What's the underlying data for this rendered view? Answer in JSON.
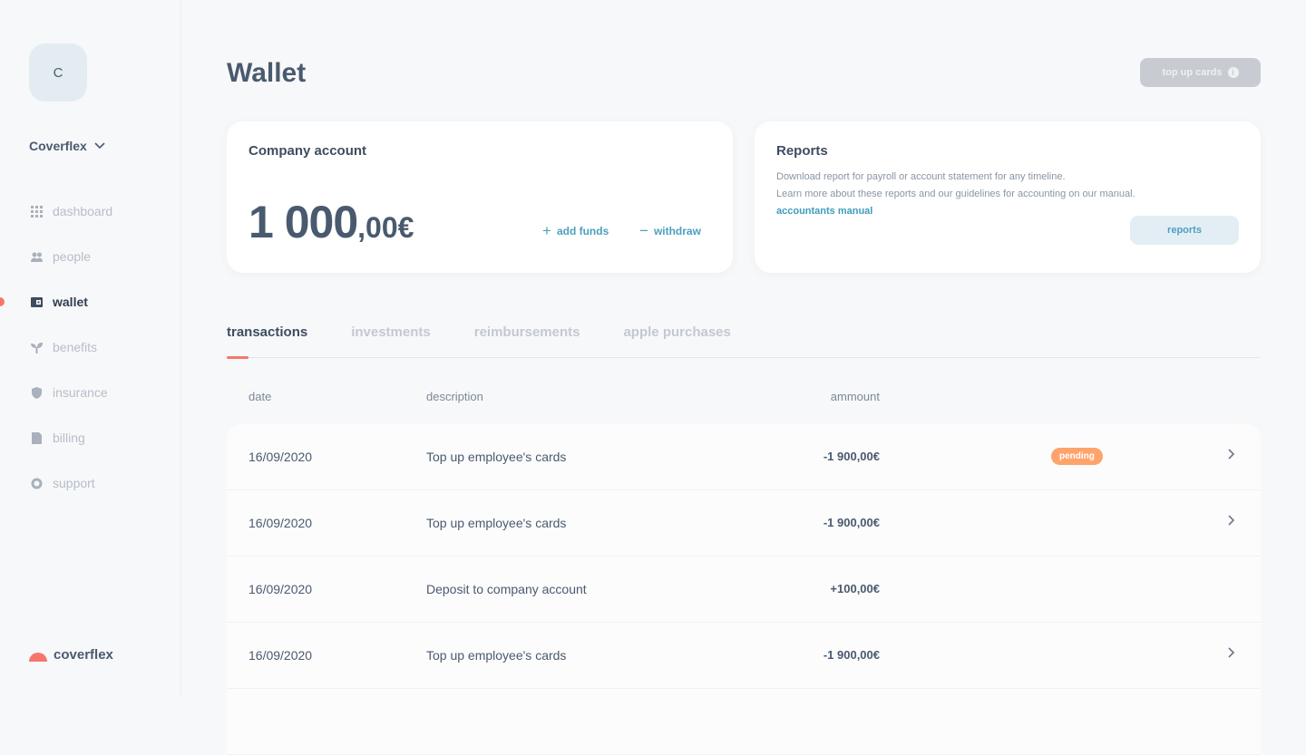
{
  "sidebar": {
    "avatar_initial": "C",
    "company": "Coverflex",
    "items": [
      {
        "label": "dashboard",
        "icon": "grid-icon",
        "active": false
      },
      {
        "label": "people",
        "icon": "people-icon",
        "active": false
      },
      {
        "label": "wallet",
        "icon": "wallet-icon",
        "active": true
      },
      {
        "label": "benefits",
        "icon": "sprout-icon",
        "active": false
      },
      {
        "label": "insurance",
        "icon": "shield-icon",
        "active": false
      },
      {
        "label": "billing",
        "icon": "invoice-icon",
        "active": false
      },
      {
        "label": "support",
        "icon": "lifebuoy-icon",
        "active": false
      }
    ],
    "logo": "coverflex"
  },
  "header": {
    "title": "Wallet",
    "top_up_label": "top up cards"
  },
  "company_account": {
    "title": "Company account",
    "balance_int": "1 000",
    "balance_dec": ",00€",
    "add_funds": "add funds",
    "withdraw": "withdraw"
  },
  "reports": {
    "title": "Reports",
    "line1": "Download report for payroll or account statement for any timeline.",
    "line2": "Learn more about these reports and our guidelines for accounting on our manual.",
    "link": "accountants manual",
    "button": "reports"
  },
  "tabs": [
    {
      "label": "transactions",
      "active": true
    },
    {
      "label": "investments"
    },
    {
      "label": "reimbursements"
    },
    {
      "label": "apple purchases"
    }
  ],
  "table": {
    "columns": [
      "date",
      "description",
      "ammount"
    ],
    "rows": [
      {
        "date": "16/09/2020",
        "description": "Top up employee's cards",
        "amount": "-1 900,00€",
        "status": "pending",
        "chevron": true
      },
      {
        "date": "16/09/2020",
        "description": "Top up employee's cards",
        "amount": "-1 900,00€",
        "status": "",
        "chevron": true
      },
      {
        "date": "16/09/2020",
        "description": "Deposit to company account",
        "amount": "+100,00€",
        "status": "",
        "chevron": false
      },
      {
        "date": "16/09/2020",
        "description": "Top up employee's cards",
        "amount": "-1 900,00€",
        "status": "",
        "chevron": true
      }
    ]
  },
  "colors": {
    "accent": "#f7766b",
    "link": "#4d9fbf",
    "pending": "#ffa36c"
  }
}
